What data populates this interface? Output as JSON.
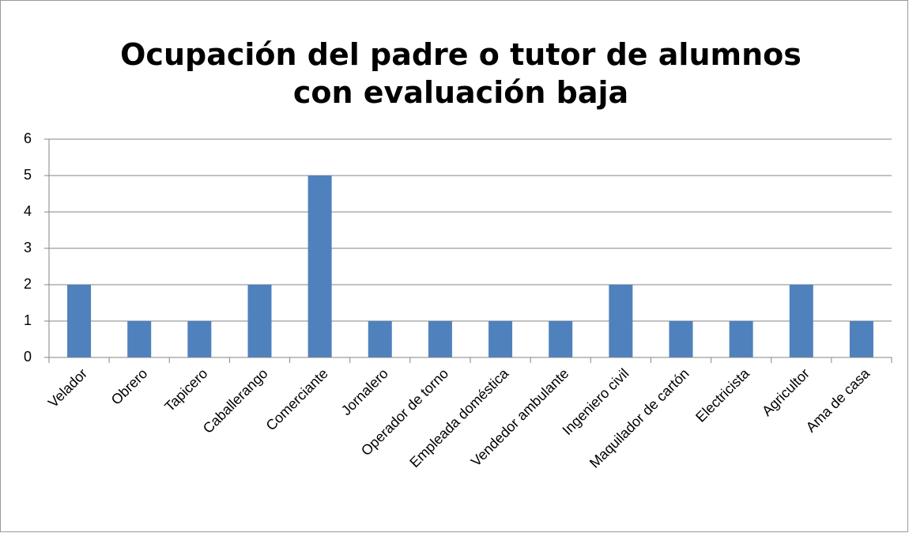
{
  "chart_data": {
    "type": "bar",
    "title": "Ocupación del padre o tutor de alumnos con evaluación baja",
    "categories": [
      "Velador",
      "Obrero",
      "Tapicero",
      "Caballerango",
      "Comerciante",
      "Jornalero",
      "Operador de torno",
      "Empleada doméstica",
      "Vendedor ambulante",
      "Ingeniero civil",
      "Maquilador de cartón",
      "Electricista",
      "Agricultor",
      "Ama de casa"
    ],
    "values": [
      2,
      1,
      1,
      2,
      5,
      1,
      1,
      1,
      1,
      2,
      1,
      1,
      2,
      1
    ],
    "color": "#4f81bd",
    "ylim": [
      0,
      6
    ],
    "yticks": [
      0,
      1,
      2,
      3,
      4,
      5,
      6
    ],
    "grid": true
  }
}
